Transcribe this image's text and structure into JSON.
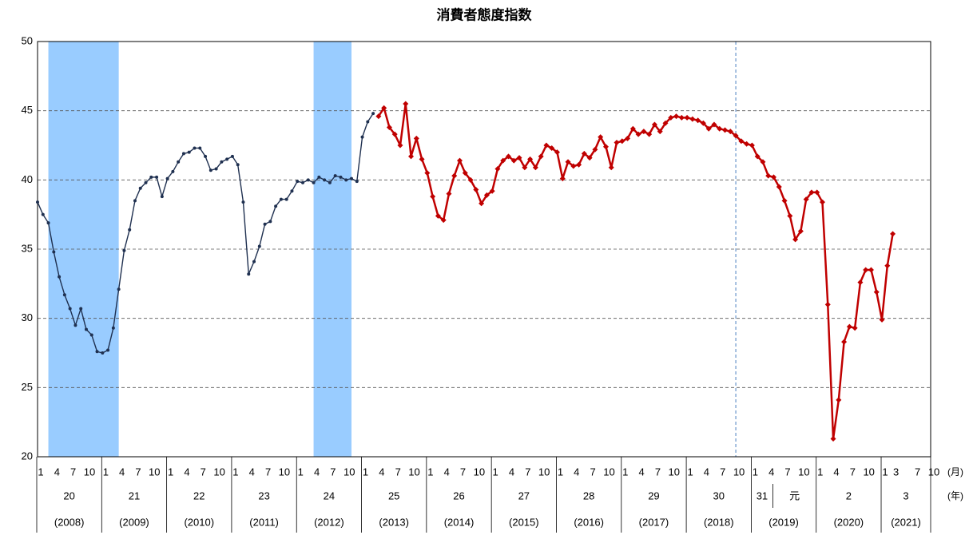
{
  "chart_data": {
    "type": "line",
    "title": "消費者態度指数",
    "ylim": [
      20,
      50
    ],
    "yticks": [
      20,
      25,
      30,
      35,
      40,
      45,
      50
    ],
    "grid": true,
    "categories": [
      1,
      null,
      null,
      4,
      null,
      null,
      7,
      null,
      null,
      10,
      null,
      null,
      1,
      null,
      null,
      4,
      null,
      null,
      7,
      null,
      null,
      10,
      null,
      null,
      1,
      null,
      null,
      4,
      null,
      null,
      7,
      null,
      null,
      10,
      null,
      null,
      1,
      null,
      null,
      4,
      null,
      null,
      7,
      null,
      null,
      10,
      null,
      null,
      1,
      null,
      null,
      4,
      null,
      null,
      7,
      null,
      null,
      10,
      null,
      null,
      1,
      null,
      null,
      4,
      null,
      null,
      7,
      null,
      null,
      10,
      null,
      null,
      1,
      null,
      null,
      4,
      null,
      null,
      7,
      null,
      null,
      10,
      null,
      null,
      1,
      null,
      null,
      4,
      null,
      null,
      7,
      null,
      null,
      10,
      null,
      null,
      1,
      null,
      null,
      4,
      null,
      null,
      7,
      null,
      null,
      10,
      null,
      null,
      1,
      null,
      null,
      4,
      null,
      null,
      7,
      null,
      null,
      10,
      null,
      null,
      1,
      null,
      null,
      4,
      null,
      null,
      7,
      null,
      null,
      10,
      null,
      null,
      1,
      null,
      null,
      4,
      null,
      null,
      7,
      null,
      null,
      10,
      null,
      null,
      1,
      null,
      null,
      4,
      null,
      null,
      7,
      null,
      null,
      10,
      null,
      null,
      1,
      null,
      3,
      null,
      null,
      null,
      7,
      null,
      null,
      10
    ],
    "eras": [
      "20",
      "21",
      "22",
      "23",
      "24",
      "25",
      "26",
      "27",
      "28",
      "29",
      "30",
      "31",
      "元",
      "2",
      "3"
    ],
    "years": [
      "(2008)",
      "(2009)",
      "(2010)",
      "(2011)",
      "(2012)",
      "(2013)",
      "(2014)",
      "(2015)",
      "(2016)",
      "(2017)",
      "(2018)",
      "(2019)",
      "(2020)",
      "(2021)"
    ],
    "month_unit": "(月)",
    "year_unit": "(年)",
    "shaded_ranges": [
      [
        2,
        15
      ],
      [
        51,
        58
      ]
    ],
    "shade_color": "#99ccff",
    "vline_index": 129,
    "series": [
      {
        "name": "navy",
        "color": "#1f3050",
        "marker": "circle",
        "values": [
          38.4,
          37.5,
          36.9,
          34.8,
          33.0,
          31.7,
          30.7,
          29.5,
          30.7,
          29.2,
          28.8,
          27.6,
          27.5,
          27.7,
          29.3,
          32.1,
          34.9,
          36.4,
          38.5,
          39.4,
          39.8,
          40.2,
          40.2,
          38.8,
          40.1,
          40.6,
          41.3,
          41.9,
          42.0,
          42.3,
          42.3,
          41.7,
          40.7,
          40.8,
          41.3,
          41.5,
          41.7,
          41.1,
          38.4,
          33.2,
          34.1,
          35.2,
          36.8,
          37.0,
          38.1,
          38.6,
          38.6,
          39.2,
          39.9,
          39.8,
          40.0,
          39.8,
          40.2,
          40.0,
          39.8,
          40.3,
          40.2,
          40.0,
          40.1,
          39.9,
          43.1,
          44.2,
          44.8,
          null,
          null,
          null,
          null,
          null,
          null,
          null,
          null,
          null,
          null,
          null,
          null,
          null,
          null,
          null,
          null,
          null,
          null,
          null,
          null,
          null,
          null,
          null,
          null,
          null,
          null,
          null,
          null,
          null,
          null,
          null,
          null,
          null,
          null,
          null,
          null,
          null,
          null,
          null,
          null,
          null,
          null,
          null,
          null,
          null,
          null,
          null,
          null,
          null,
          null,
          null,
          null,
          null,
          null,
          null,
          null,
          null,
          null,
          null,
          null,
          null,
          null,
          null,
          null,
          null,
          null,
          null,
          null,
          null,
          null,
          null,
          null,
          null,
          null,
          null,
          null,
          null,
          null,
          null,
          null,
          null,
          null,
          null,
          null,
          null,
          null,
          null,
          null,
          null,
          null,
          null,
          null,
          null,
          null,
          null,
          null,
          null,
          null,
          null,
          null,
          null,
          null,
          null
        ]
      },
      {
        "name": "red",
        "color": "#c00000",
        "marker": "diamond",
        "values": [
          null,
          null,
          null,
          null,
          null,
          null,
          null,
          null,
          null,
          null,
          null,
          null,
          null,
          null,
          null,
          null,
          null,
          null,
          null,
          null,
          null,
          null,
          null,
          null,
          null,
          null,
          null,
          null,
          null,
          null,
          null,
          null,
          null,
          null,
          null,
          null,
          null,
          null,
          null,
          null,
          null,
          null,
          null,
          null,
          null,
          null,
          null,
          null,
          null,
          null,
          null,
          null,
          null,
          null,
          null,
          null,
          null,
          null,
          null,
          null,
          null,
          null,
          null,
          44.6,
          45.2,
          43.8,
          43.3,
          42.5,
          45.5,
          41.7,
          43.0,
          41.5,
          40.5,
          38.8,
          37.4,
          37.1,
          39.0,
          40.3,
          41.4,
          40.5,
          40.0,
          39.3,
          38.3,
          38.9,
          39.2,
          40.8,
          41.4,
          41.7,
          41.4,
          41.6,
          40.9,
          41.5,
          40.9,
          41.7,
          42.5,
          42.3,
          42.0,
          40.1,
          41.3,
          41.0,
          41.1,
          41.9,
          41.6,
          42.2,
          43.1,
          42.4,
          40.9,
          42.7,
          42.8,
          43.0,
          43.7,
          43.3,
          43.5,
          43.3,
          44.0,
          43.5,
          44.1,
          44.5,
          44.6,
          44.5,
          44.5,
          44.4,
          44.3,
          44.1,
          43.7,
          44.0,
          43.7,
          43.6,
          43.5,
          43.2,
          42.8,
          42.6,
          42.5,
          41.7,
          41.3,
          40.3,
          40.2,
          39.5,
          38.5,
          37.4,
          35.7,
          36.3,
          38.6,
          39.1,
          39.1,
          38.4,
          31.0,
          21.3,
          24.1,
          28.3,
          29.4,
          29.3,
          32.6,
          33.5,
          33.5,
          31.9,
          29.9,
          33.8,
          36.1,
          null,
          null,
          null,
          null,
          null,
          null,
          null
        ]
      }
    ]
  }
}
